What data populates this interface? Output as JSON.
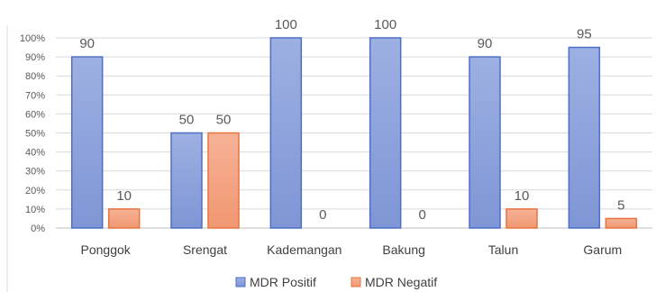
{
  "chart_data": {
    "type": "bar",
    "categories": [
      "Ponggok",
      "Srengat",
      "Kademangan",
      "Bakung",
      "Talun",
      "Garum"
    ],
    "series": [
      {
        "name": "MDR Positif",
        "values": [
          90,
          50,
          100,
          100,
          90,
          95
        ],
        "labels": [
          "90",
          "50",
          "100",
          "100",
          "90",
          "95"
        ],
        "color": "#8EA4DA"
      },
      {
        "name": "MDR Negatif",
        "values": [
          10,
          50,
          0,
          0,
          10,
          5
        ],
        "labels": [
          "10",
          "50",
          "0",
          "0",
          "10",
          "5"
        ],
        "color": "#F4A585"
      }
    ],
    "y_ticks": [
      "0%",
      "10%",
      "20%",
      "30%",
      "40%",
      "50%",
      "60%",
      "70%",
      "80%",
      "90%",
      "100%"
    ],
    "ylim": [
      0,
      100
    ],
    "grid": true,
    "legend_position": "bottom",
    "title": "",
    "xlabel": "",
    "ylabel": ""
  }
}
